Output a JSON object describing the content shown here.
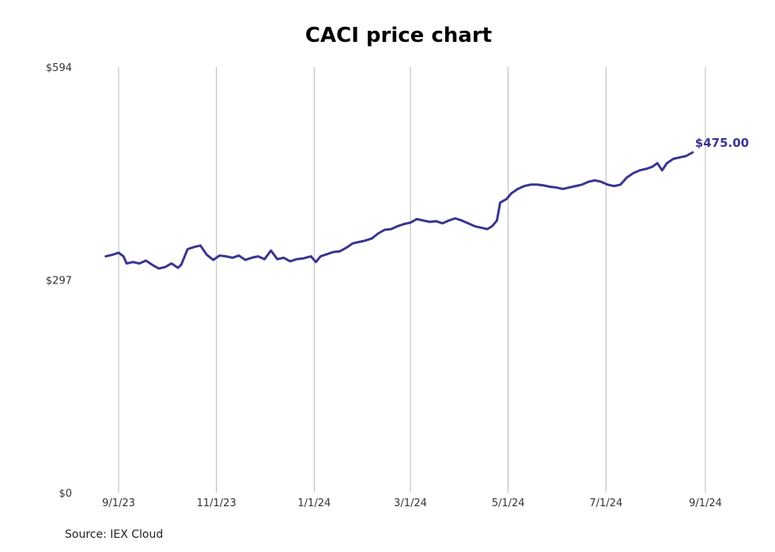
{
  "chart_data": {
    "type": "line",
    "title": "CACI price chart",
    "source": "Source: IEX Cloud",
    "y_ticks": [
      {
        "value": 0,
        "label": "$0"
      },
      {
        "value": 297,
        "label": "$297"
      },
      {
        "value": 594,
        "label": "$594"
      }
    ],
    "x_ticks": [
      {
        "date": "2023-09-01",
        "label": "9/1/23"
      },
      {
        "date": "2023-11-01",
        "label": "11/1/23"
      },
      {
        "date": "2024-01-01",
        "label": "1/1/24"
      },
      {
        "date": "2024-03-01",
        "label": "3/1/24"
      },
      {
        "date": "2024-05-01",
        "label": "5/1/24"
      },
      {
        "date": "2024-07-01",
        "label": "7/1/24"
      },
      {
        "date": "2024-09-01",
        "label": "9/1/24"
      }
    ],
    "ylim": [
      0,
      594
    ],
    "grid": "vertical",
    "line_color": "#3b3590",
    "end_label": "$475.00",
    "series": [
      {
        "points": [
          [
            "2023-08-24",
            330
          ],
          [
            "2023-08-28",
            332
          ],
          [
            "2023-09-01",
            335
          ],
          [
            "2023-09-04",
            330
          ],
          [
            "2023-09-06",
            320
          ],
          [
            "2023-09-10",
            322
          ],
          [
            "2023-09-14",
            320
          ],
          [
            "2023-09-18",
            324
          ],
          [
            "2023-09-22",
            318
          ],
          [
            "2023-09-26",
            313
          ],
          [
            "2023-09-30",
            315
          ],
          [
            "2023-10-04",
            320
          ],
          [
            "2023-10-08",
            314
          ],
          [
            "2023-10-10",
            318
          ],
          [
            "2023-10-14",
            340
          ],
          [
            "2023-10-18",
            343
          ],
          [
            "2023-10-22",
            345
          ],
          [
            "2023-10-26",
            332
          ],
          [
            "2023-10-30",
            325
          ],
          [
            "2023-11-03",
            331
          ],
          [
            "2023-11-07",
            330
          ],
          [
            "2023-11-11",
            328
          ],
          [
            "2023-11-15",
            331
          ],
          [
            "2023-11-19",
            325
          ],
          [
            "2023-11-23",
            328
          ],
          [
            "2023-11-27",
            330
          ],
          [
            "2023-12-01",
            326
          ],
          [
            "2023-12-05",
            338
          ],
          [
            "2023-12-09",
            326
          ],
          [
            "2023-12-13",
            328
          ],
          [
            "2023-12-17",
            323
          ],
          [
            "2023-12-21",
            326
          ],
          [
            "2023-12-25",
            327
          ],
          [
            "2023-12-30",
            330
          ],
          [
            "2024-01-02",
            322
          ],
          [
            "2024-01-05",
            330
          ],
          [
            "2024-01-09",
            333
          ],
          [
            "2024-01-13",
            336
          ],
          [
            "2024-01-17",
            337
          ],
          [
            "2024-01-21",
            342
          ],
          [
            "2024-01-25",
            348
          ],
          [
            "2024-01-29",
            350
          ],
          [
            "2024-02-02",
            352
          ],
          [
            "2024-02-06",
            355
          ],
          [
            "2024-02-10",
            362
          ],
          [
            "2024-02-14",
            367
          ],
          [
            "2024-02-18",
            368
          ],
          [
            "2024-02-22",
            372
          ],
          [
            "2024-02-26",
            375
          ],
          [
            "2024-03-01",
            377
          ],
          [
            "2024-03-05",
            382
          ],
          [
            "2024-03-09",
            380
          ],
          [
            "2024-03-13",
            378
          ],
          [
            "2024-03-17",
            379
          ],
          [
            "2024-03-21",
            376
          ],
          [
            "2024-03-25",
            380
          ],
          [
            "2024-03-29",
            383
          ],
          [
            "2024-04-02",
            380
          ],
          [
            "2024-04-06",
            376
          ],
          [
            "2024-04-10",
            372
          ],
          [
            "2024-04-14",
            370
          ],
          [
            "2024-04-18",
            368
          ],
          [
            "2024-04-21",
            372
          ],
          [
            "2024-04-24",
            380
          ],
          [
            "2024-04-26",
            405
          ],
          [
            "2024-04-30",
            410
          ],
          [
            "2024-05-03",
            418
          ],
          [
            "2024-05-07",
            424
          ],
          [
            "2024-05-11",
            428
          ],
          [
            "2024-05-15",
            430
          ],
          [
            "2024-05-19",
            430
          ],
          [
            "2024-05-23",
            429
          ],
          [
            "2024-05-27",
            427
          ],
          [
            "2024-05-31",
            426
          ],
          [
            "2024-06-04",
            424
          ],
          [
            "2024-06-08",
            426
          ],
          [
            "2024-06-12",
            428
          ],
          [
            "2024-06-16",
            430
          ],
          [
            "2024-06-20",
            434
          ],
          [
            "2024-06-24",
            436
          ],
          [
            "2024-06-28",
            434
          ],
          [
            "2024-07-02",
            430
          ],
          [
            "2024-07-06",
            428
          ],
          [
            "2024-07-10",
            430
          ],
          [
            "2024-07-14",
            440
          ],
          [
            "2024-07-18",
            446
          ],
          [
            "2024-07-22",
            450
          ],
          [
            "2024-07-26",
            452
          ],
          [
            "2024-07-30",
            455
          ],
          [
            "2024-08-02",
            460
          ],
          [
            "2024-08-05",
            450
          ],
          [
            "2024-08-08",
            460
          ],
          [
            "2024-08-12",
            466
          ],
          [
            "2024-08-16",
            468
          ],
          [
            "2024-08-20",
            470
          ],
          [
            "2024-08-24",
            475
          ]
        ]
      }
    ]
  }
}
